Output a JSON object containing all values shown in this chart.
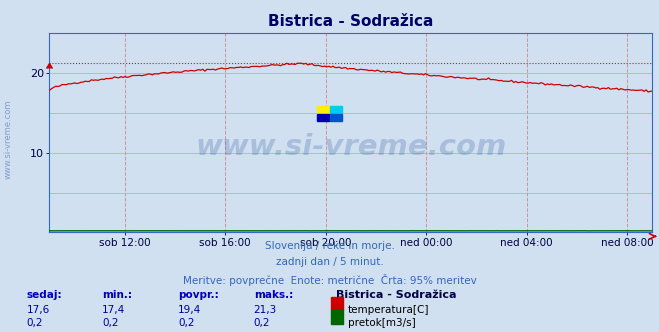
{
  "title": "Bistrica - Sodražica",
  "bg_color": "#d0e0f0",
  "plot_bg_color": "#d0e0f0",
  "grid_color_v": "#cc8888",
  "grid_color_h": "#cc9999",
  "x_tick_labels": [
    "sob 12:00",
    "sob 16:00",
    "sob 20:00",
    "ned 00:00",
    "ned 04:00",
    "ned 08:00"
  ],
  "ylim": [
    0,
    25
  ],
  "yticks": [
    10,
    20
  ],
  "ylabel_color": "#000044",
  "temp_color": "#cc0000",
  "flow_color": "#006600",
  "temp_max_line": 21.3,
  "watermark_text": "www.si-vreme.com",
  "watermark_color": "#4466aa",
  "watermark_alpha": 0.28,
  "subtitle1": "Slovenija / reke in morje.",
  "subtitle2": "zadnji dan / 5 minut.",
  "subtitle3": "Meritve: povprečne  Enote: metrične  Črta: 95% meritev",
  "subtitle_color": "#3366bb",
  "table_headers": [
    "sedaj:",
    "min.:",
    "povpr.:",
    "maks.:"
  ],
  "table_header_color": "#0000bb",
  "temp_row": [
    "17,6",
    "17,4",
    "19,4",
    "21,3"
  ],
  "flow_row": [
    "0,2",
    "0,2",
    "0,2",
    "0,2"
  ],
  "table_value_color": "#000099",
  "station_label": "Bistrica - Sodražica",
  "station_label_color": "#000044",
  "legend_temp": "temperatura[C]",
  "legend_flow": "pretok[m3/s]",
  "legend_text_color": "#000000",
  "axis_color": "#3366cc",
  "title_color": "#000066",
  "spine_color": "#3366cc"
}
